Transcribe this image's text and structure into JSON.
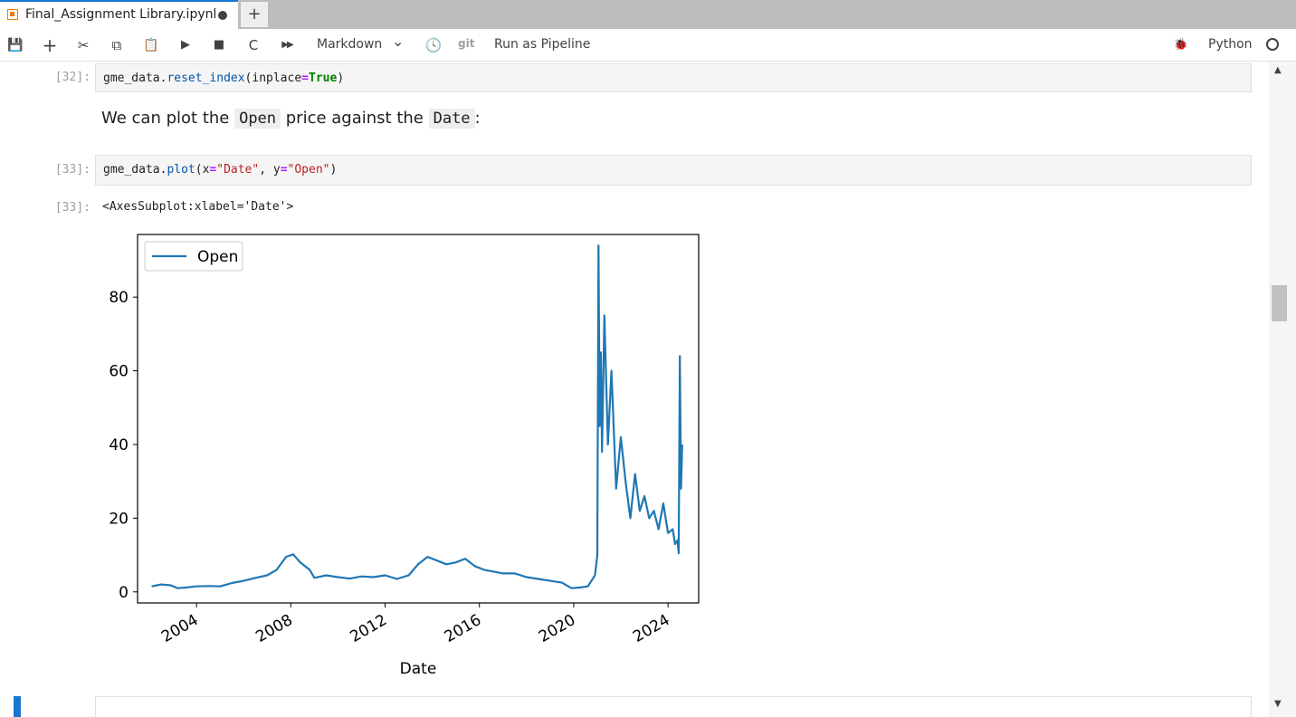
{
  "tab": {
    "title": "Final_Assignment Library.ipynb",
    "new_tab": "+"
  },
  "toolbar": {
    "save": "💾",
    "add": "+",
    "cut": "✂",
    "copy": "⧉",
    "paste": "📋",
    "run": "▶",
    "stop": "■",
    "restart": "C",
    "run_all": "▶▶",
    "cell_type": "Markdown",
    "cell_type_chevron": "⌄",
    "history": "🕓",
    "git": "git",
    "pipeline": "Run as Pipeline",
    "debug": "🐞",
    "kernel": "Python"
  },
  "cells": {
    "c32": {
      "prompt": "[32]:"
    },
    "md": {
      "before": "We can plot the ",
      "code1": "Open",
      "middle": " price against the ",
      "code2": "Date",
      "after": ":"
    },
    "c33": {
      "prompt": "[33]:",
      "out_prompt": "[33]:",
      "output_text": "<AxesSubplot:xlabel='Date'>"
    }
  },
  "chart_data": {
    "type": "line",
    "xlabel": "Date",
    "ylabel": "",
    "xlim": [
      2001.5,
      2025.3
    ],
    "ylim": [
      -3,
      97
    ],
    "xticks": [
      2004,
      2008,
      2012,
      2016,
      2020,
      2024
    ],
    "yticks": [
      0,
      20,
      40,
      60,
      80
    ],
    "legend": "top-left",
    "grid": false,
    "series": [
      {
        "name": "Open",
        "color": "#1f77b4",
        "x": [
          2002.1,
          2002.5,
          2002.9,
          2003.2,
          2003.6,
          2004.0,
          2004.5,
          2005.0,
          2005.5,
          2006.0,
          2006.5,
          2007.0,
          2007.4,
          2007.8,
          2008.1,
          2008.4,
          2008.8,
          2009.0,
          2009.5,
          2010.0,
          2010.5,
          2011.0,
          2011.5,
          2012.0,
          2012.5,
          2013.0,
          2013.4,
          2013.8,
          2014.2,
          2014.6,
          2015.0,
          2015.4,
          2015.8,
          2016.2,
          2016.6,
          2017.0,
          2017.5,
          2018.0,
          2018.5,
          2019.0,
          2019.5,
          2019.9,
          2020.3,
          2020.6,
          2020.9,
          2021.0,
          2021.05,
          2021.1,
          2021.15,
          2021.2,
          2021.3,
          2021.45,
          2021.6,
          2021.8,
          2022.0,
          2022.2,
          2022.4,
          2022.6,
          2022.8,
          2023.0,
          2023.2,
          2023.4,
          2023.6,
          2023.8,
          2024.0,
          2024.2,
          2024.3,
          2024.4,
          2024.45,
          2024.5,
          2024.55,
          2024.6
        ],
        "y": [
          1.5,
          2.0,
          1.8,
          1.0,
          1.2,
          1.5,
          1.6,
          1.5,
          2.4,
          3.0,
          3.8,
          4.5,
          6.0,
          9.5,
          10.2,
          8.0,
          6.0,
          3.8,
          4.5,
          4.0,
          3.6,
          4.2,
          4.0,
          4.5,
          3.5,
          4.5,
          7.5,
          9.5,
          8.5,
          7.5,
          8.0,
          9.0,
          7.0,
          6.0,
          5.5,
          5.0,
          5.0,
          4.0,
          3.5,
          3.0,
          2.5,
          1.0,
          1.2,
          1.5,
          4.5,
          10.0,
          94.0,
          45.0,
          65.0,
          38.0,
          75.0,
          40.0,
          60.0,
          28.0,
          42.0,
          30.0,
          20.0,
          32.0,
          22.0,
          26.0,
          20.0,
          22.0,
          17.0,
          24.0,
          16.0,
          17.0,
          13.0,
          14.0,
          10.5,
          64.0,
          28.0,
          40.0
        ]
      }
    ]
  }
}
